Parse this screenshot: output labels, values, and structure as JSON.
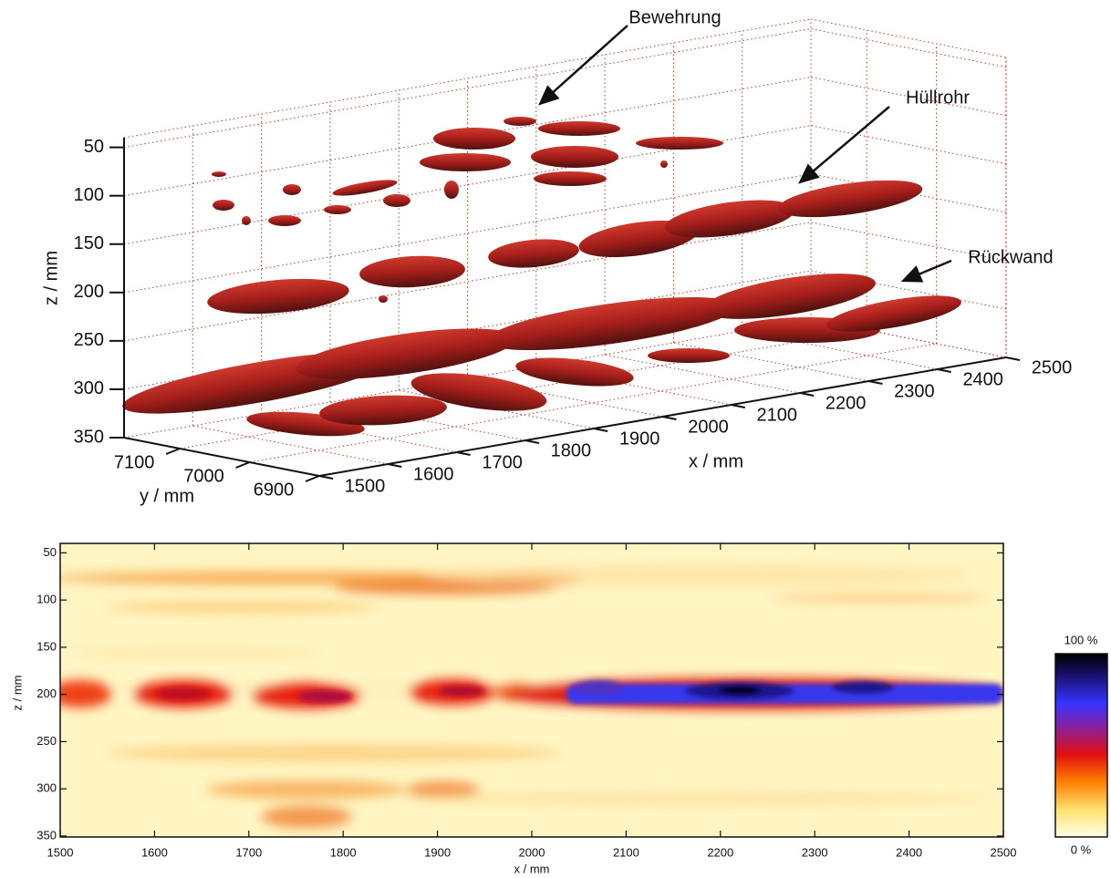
{
  "chart_data": [
    {
      "type": "isosurface3d",
      "xlabel": "x  /  mm",
      "ylabel": "y  /  mm",
      "zlabel": "z  /  mm",
      "xlim": [
        1500,
        2500
      ],
      "ylim": [
        6900,
        7180
      ],
      "zlim": [
        40,
        350
      ],
      "zreverse": true,
      "xticks": [
        1500,
        1600,
        1700,
        1800,
        1900,
        2000,
        2100,
        2200,
        2300,
        2400,
        2500
      ],
      "yticks": [
        6900,
        7000,
        7100
      ],
      "zticks": [
        50,
        100,
        150,
        200,
        250,
        300,
        350
      ],
      "grid": true,
      "grid_color": "#c0392b",
      "color": "#a61e1a",
      "annotations": [
        {
          "text": "Bewehrung"
        },
        {
          "text": "Hüllrohr"
        },
        {
          "text": "Rückwand"
        }
      ]
    },
    {
      "type": "heatmap",
      "xlabel": "x  /  mm",
      "ylabel": "z  /  mm",
      "xlim": [
        1500,
        2500
      ],
      "ylim": [
        40,
        351
      ],
      "yreverse": true,
      "xticks": [
        1500,
        1600,
        1700,
        1800,
        1900,
        2000,
        2100,
        2200,
        2300,
        2400,
        2500
      ],
      "yticks": [
        50,
        100,
        150,
        200,
        250,
        300,
        350
      ],
      "colorbar": {
        "lim": [
          0,
          100
        ],
        "ticks": [
          {
            "value": 0,
            "label": "0 %"
          },
          {
            "value": 100,
            "label": "100 %"
          }
        ]
      }
    }
  ]
}
